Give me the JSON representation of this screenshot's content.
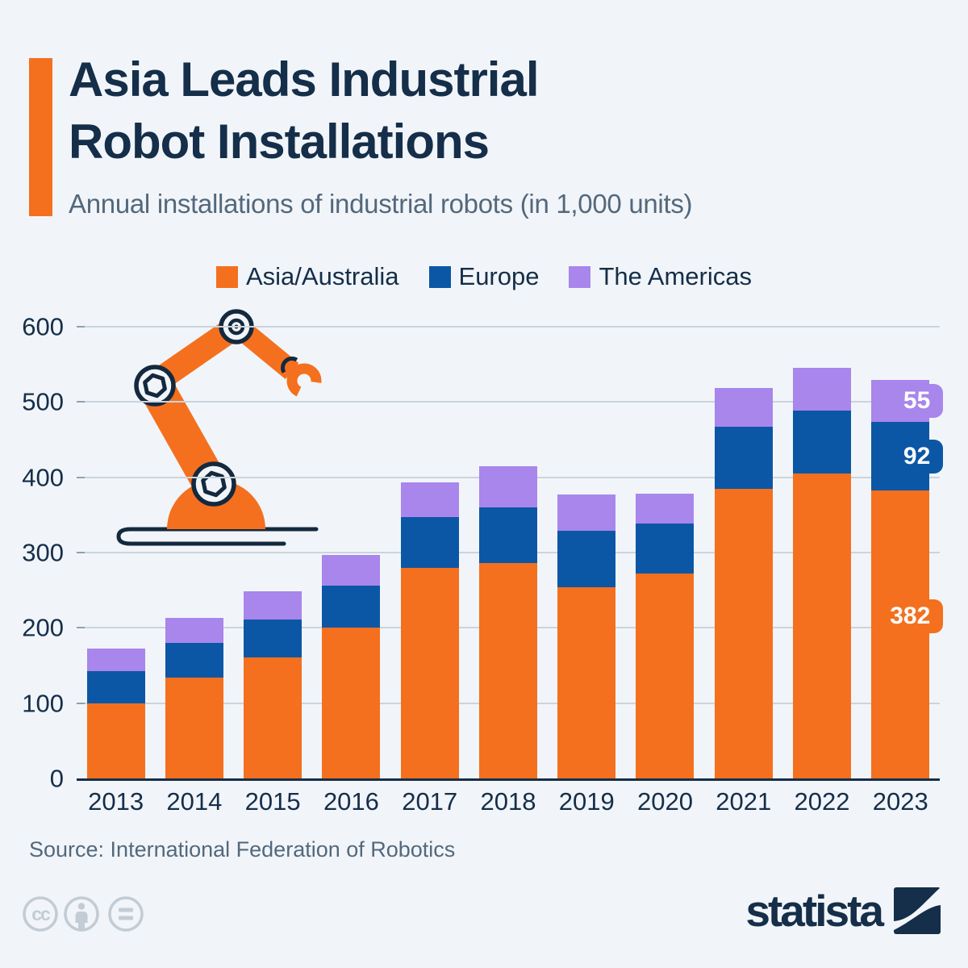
{
  "header": {
    "title_line1": "Asia Leads Industrial",
    "title_line2": "Robot Installations",
    "subtitle": "Annual installations of industrial robots (in 1,000 units)"
  },
  "legend": {
    "items": [
      {
        "label": "Asia/Australia",
        "color": "#F4701E"
      },
      {
        "label": "Europe",
        "color": "#0B57A5"
      },
      {
        "label": "The Americas",
        "color": "#A886EB"
      }
    ]
  },
  "chart_data": {
    "type": "bar",
    "stacked": true,
    "title": "Asia Leads Industrial Robot Installations",
    "subtitle": "Annual installations of industrial robots (in 1,000 units)",
    "categories": [
      "2013",
      "2014",
      "2015",
      "2016",
      "2017",
      "2018",
      "2019",
      "2020",
      "2021",
      "2022",
      "2023"
    ],
    "series": [
      {
        "name": "Asia/Australia",
        "color": "#F4701E",
        "values": [
          100,
          134,
          161,
          200,
          280,
          286,
          254,
          272,
          385,
          405,
          382
        ]
      },
      {
        "name": "Europe",
        "color": "#0B57A5",
        "values": [
          43,
          46,
          50,
          56,
          67,
          74,
          75,
          67,
          82,
          84,
          92
        ]
      },
      {
        "name": "The Americas",
        "color": "#A886EB",
        "values": [
          30,
          33,
          38,
          41,
          46,
          55,
          48,
          39,
          52,
          56,
          55
        ]
      }
    ],
    "ylim": [
      0,
      600
    ],
    "yticks": [
      0,
      100,
      200,
      300,
      400,
      500,
      600
    ],
    "grid": true,
    "legend_position": "top",
    "annotations": {
      "2023": [
        {
          "series_index": 0,
          "text": "382",
          "y_units": 215
        },
        {
          "series_index": 1,
          "text": "92"
        },
        {
          "series_index": 2,
          "text": "55"
        }
      ]
    }
  },
  "footer": {
    "source": "Source: International Federation of Robotics",
    "license_icons": [
      "cc-icon",
      "attribution-person-icon",
      "equals-icon"
    ],
    "brand": "statista"
  },
  "colors": {
    "background": "#F1F5F9",
    "title_navy": "#152E49",
    "subtitle_gray": "#54687C",
    "gridline": "#CBD4DD",
    "axis_baseline": "#152E49",
    "orange": "#F4701E",
    "blue": "#0B57A5",
    "purple": "#A886EB",
    "license_gray": "#C3CCD5"
  }
}
